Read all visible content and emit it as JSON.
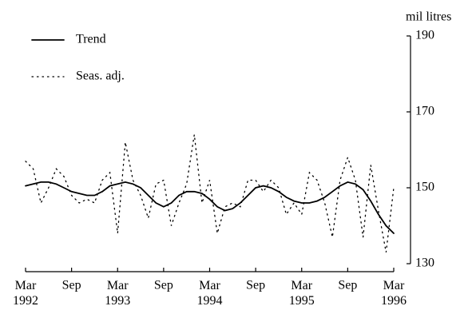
{
  "chart_data": {
    "type": "line",
    "y_axis_label": "mil litres",
    "categories": [
      "Mar 1992",
      null,
      null,
      null,
      null,
      null,
      "Sep",
      null,
      null,
      null,
      null,
      null,
      "Mar 1993",
      null,
      null,
      null,
      null,
      null,
      "Sep",
      null,
      null,
      null,
      null,
      null,
      "Mar 1994",
      null,
      null,
      null,
      null,
      null,
      "Sep",
      null,
      null,
      null,
      null,
      null,
      "Mar 1995",
      null,
      null,
      null,
      null,
      null,
      "Sep",
      null,
      null,
      null,
      null,
      null,
      "Mar 1996"
    ],
    "series": [
      {
        "name": "Trend",
        "color": "#000000",
        "style": "solid",
        "values": [
          150.5,
          151,
          151.5,
          151.5,
          151,
          150,
          149,
          148.5,
          148,
          148,
          149,
          150.5,
          151,
          151.5,
          151,
          150,
          148,
          146,
          145,
          146,
          148,
          149,
          149,
          148.5,
          147,
          145,
          144,
          144.5,
          146,
          148,
          150,
          150.5,
          150,
          149,
          147.5,
          146.5,
          146,
          146,
          146.5,
          147.5,
          149,
          150.5,
          151.5,
          151,
          149.5,
          146.5,
          143,
          140,
          138
        ]
      },
      {
        "name": "Seas. adj.",
        "color": "#000000",
        "style": "dotted",
        "values": [
          157,
          155,
          146,
          150,
          155,
          153,
          148,
          146,
          147,
          146,
          152,
          154,
          138,
          162,
          152,
          148,
          142,
          151,
          152,
          140,
          146,
          151,
          164,
          146,
          152,
          138,
          145,
          146,
          145,
          152,
          152,
          149,
          152,
          150,
          143,
          146,
          143,
          154,
          152,
          146,
          137,
          152,
          158,
          152,
          137,
          156,
          144,
          133,
          150
        ]
      }
    ],
    "ylim": [
      130,
      190
    ],
    "yticks": [
      130,
      150,
      170,
      190
    ],
    "y_axis_side": "right",
    "legend": "top-left"
  }
}
